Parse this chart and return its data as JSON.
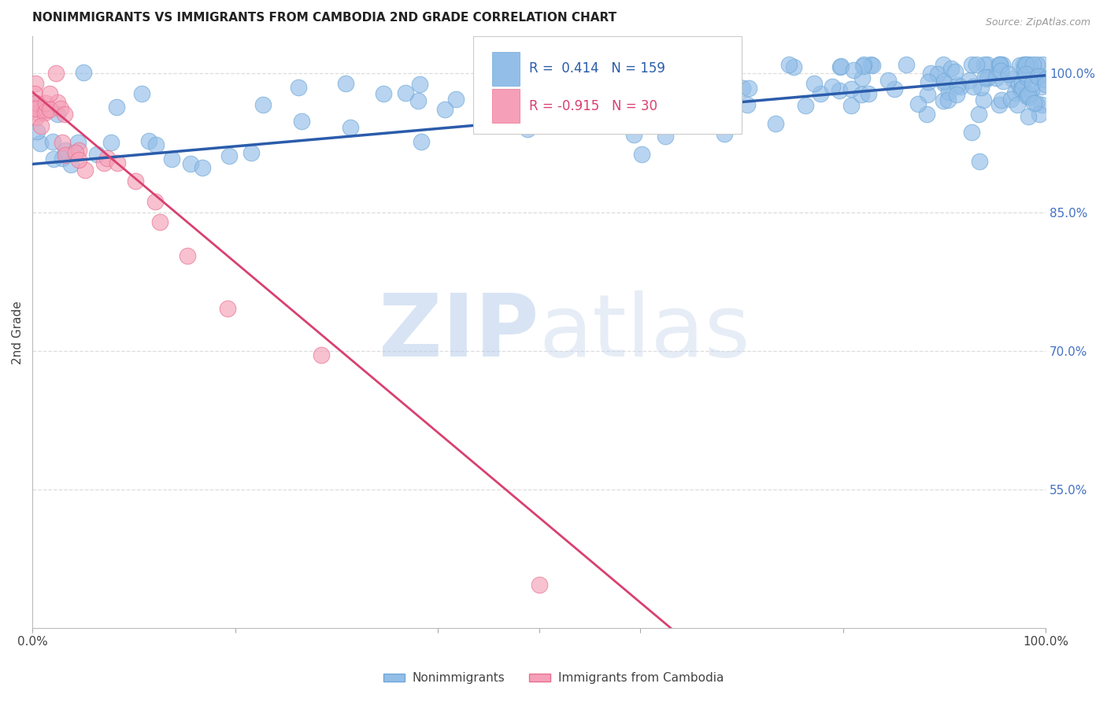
{
  "title": "NONIMMIGRANTS VS IMMIGRANTS FROM CAMBODIA 2ND GRADE CORRELATION CHART",
  "source": "Source: ZipAtlas.com",
  "ylabel": "2nd Grade",
  "right_ytick_labels": [
    "100.0%",
    "85.0%",
    "70.0%",
    "55.0%"
  ],
  "right_ytick_vals": [
    1.0,
    0.85,
    0.7,
    0.55
  ],
  "legend_label1": "Nonimmigrants",
  "legend_label2": "Immigrants from Cambodia",
  "r1": 0.414,
  "n1": 159,
  "r2": -0.915,
  "n2": 30,
  "blue_color": "#92BEE8",
  "blue_edge_color": "#6FA8D8",
  "pink_color": "#F5A0B8",
  "pink_edge_color": "#E87090",
  "blue_line_color": "#2B5CAB",
  "pink_line_color": "#D94070",
  "watermark_zip_color": "#B8CEEC",
  "watermark_atlas_color": "#C8D8EC",
  "ylim_min": 0.4,
  "ylim_max": 1.04,
  "xlim_min": 0.0,
  "xlim_max": 1.0,
  "blue_trend_y0": 0.902,
  "blue_trend_y1": 0.998,
  "pink_trend_x0": 0.0,
  "pink_trend_y0": 0.98,
  "pink_trend_x1": 0.63,
  "pink_trend_y1": 0.4
}
